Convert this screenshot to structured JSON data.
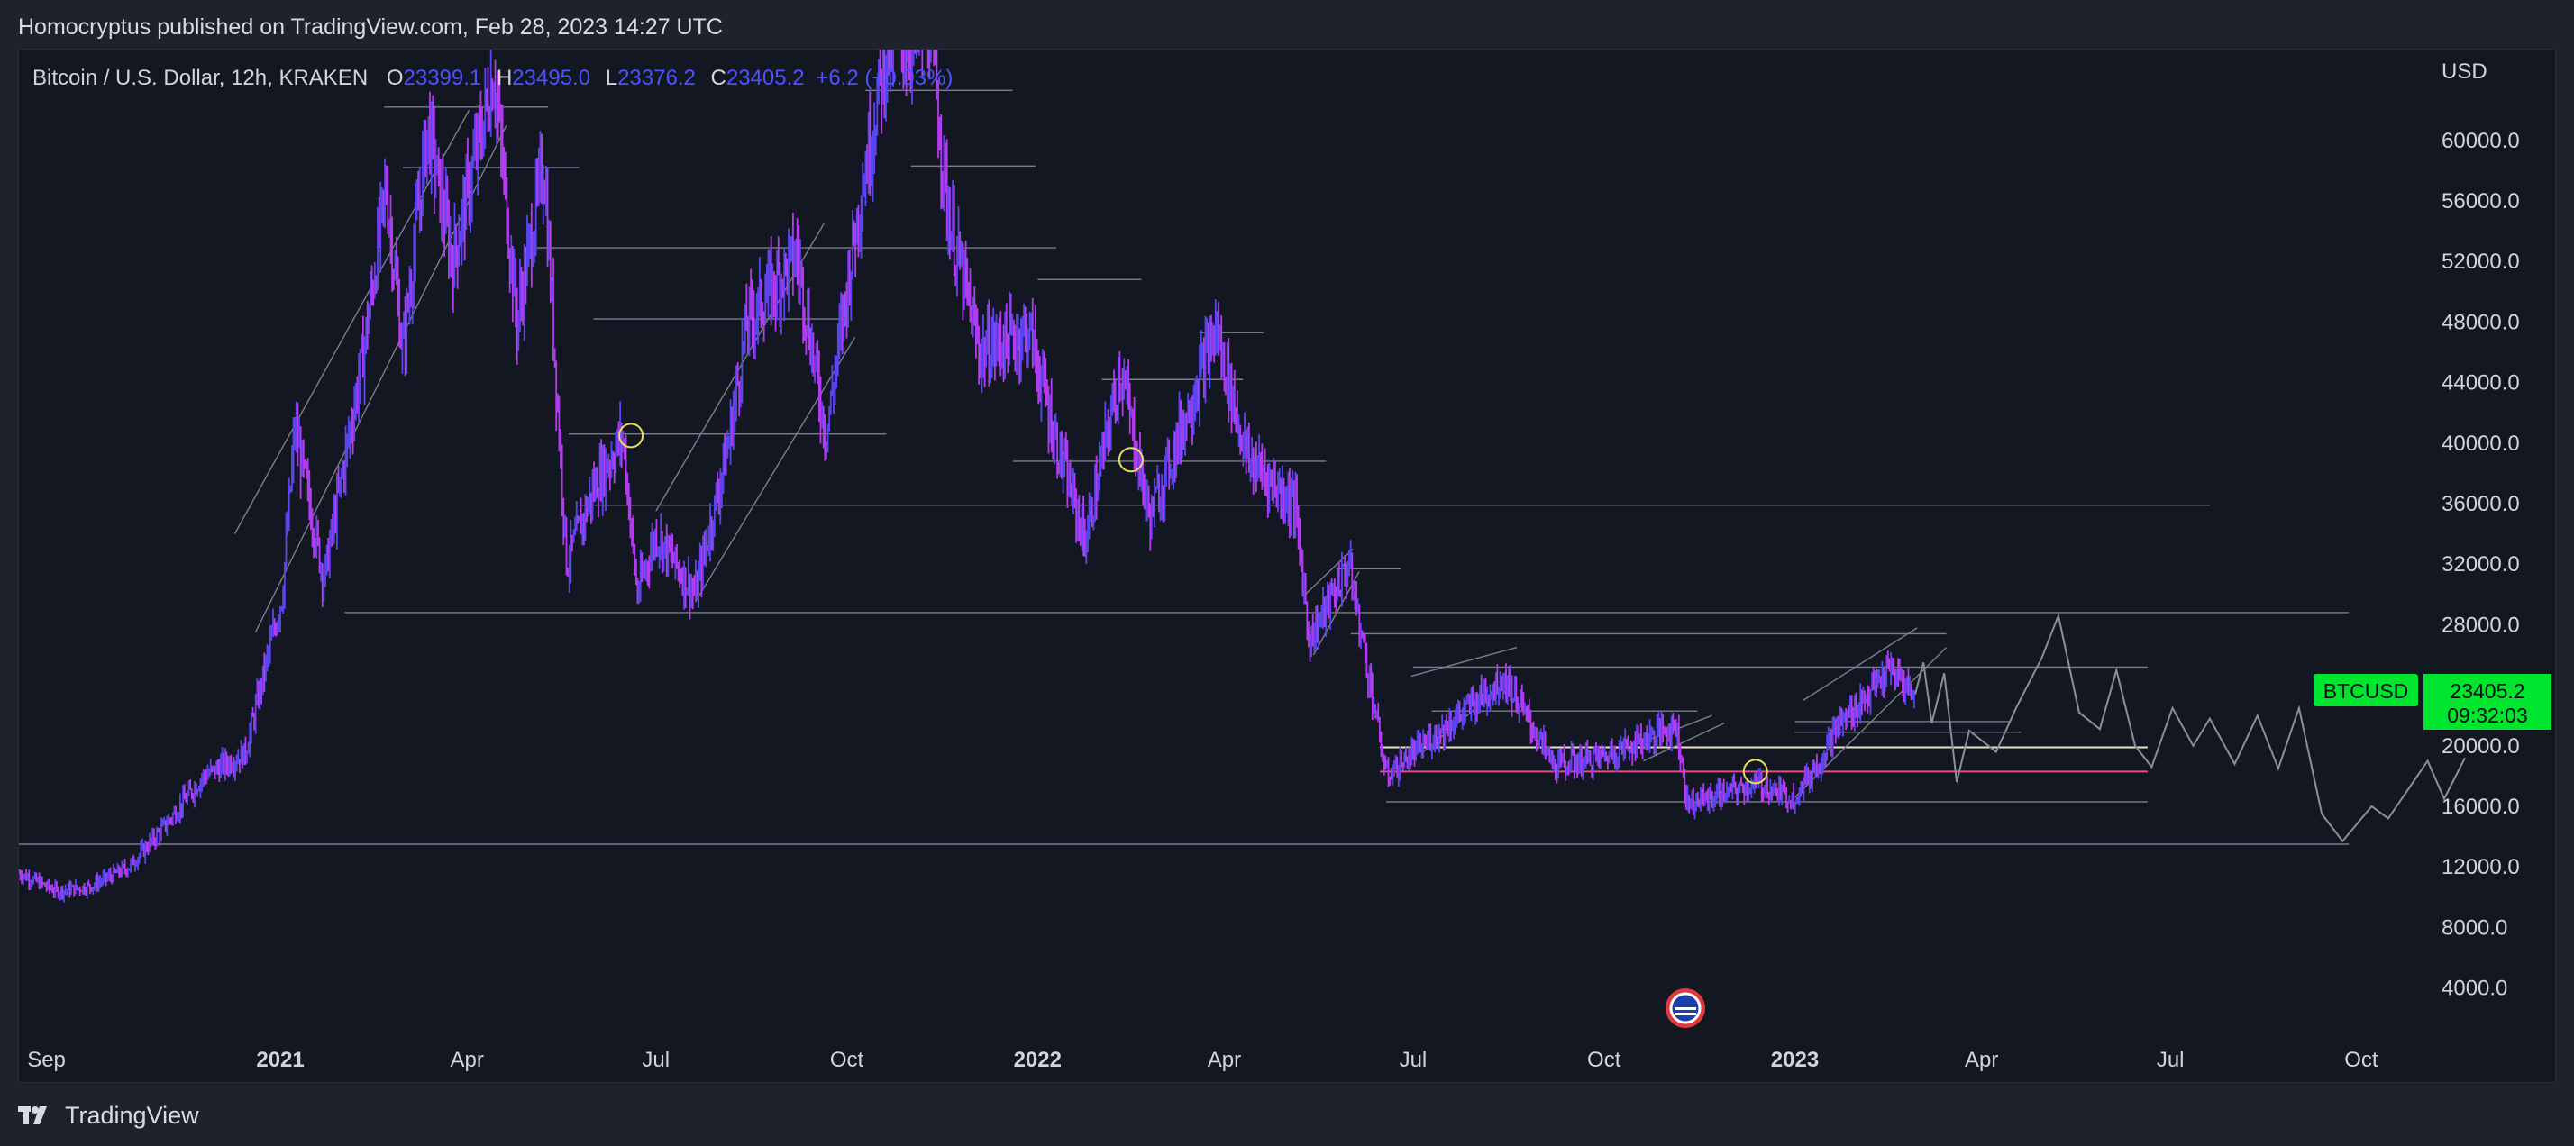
{
  "header": {
    "published": "Homocryptus published on TradingView.com, Feb 28, 2023 14:27 UTC"
  },
  "footer": {
    "brand": "TradingView",
    "logo_icon": "tradingview-logo-icon"
  },
  "colors": {
    "background": "#131722",
    "frame": "#1e222d",
    "candle": "#b43cf0",
    "candle_alt": "#5a46f0",
    "ohlc_values": "#4d52ff",
    "level_lines": "#7a7f8c",
    "support_white": "#e8e3c8",
    "support_pink": "#e84a8a",
    "price_badge": "#00e62e",
    "circle_marker": "#e8e05a"
  },
  "chart_data": {
    "type": "candlestick",
    "title": "Bitcoin / U.S. Dollar, 12h, KRAKEN",
    "symbol": "BTCUSD",
    "ohlc": {
      "o_label": "O",
      "o": "23399.1",
      "h_label": "H",
      "h": "23495.0",
      "l_label": "L",
      "l": "23376.2",
      "c_label": "C",
      "c": "23405.2",
      "change": "+6.2 (+0.03%)"
    },
    "y_axis": {
      "unit": "USD",
      "ticks": [
        "60000.0",
        "56000.0",
        "52000.0",
        "48000.0",
        "44000.0",
        "40000.0",
        "36000.0",
        "32000.0",
        "28000.0",
        "20000.0",
        "16000.0",
        "12000.0",
        "8000.0",
        "4000.0"
      ],
      "range": [
        1000,
        66000
      ]
    },
    "x_axis": {
      "range": [
        "2020-08-28",
        "2023-10-31"
      ],
      "ticks": [
        {
          "label": "Sep",
          "date": "2020-09-01",
          "bold": false
        },
        {
          "label": "2021",
          "date": "2021-01-01",
          "bold": true
        },
        {
          "label": "Apr",
          "date": "2021-04-01",
          "bold": false
        },
        {
          "label": "Jul",
          "date": "2021-07-01",
          "bold": false
        },
        {
          "label": "Oct",
          "date": "2021-10-01",
          "bold": false
        },
        {
          "label": "2022",
          "date": "2022-01-01",
          "bold": true
        },
        {
          "label": "Apr",
          "date": "2022-04-01",
          "bold": false
        },
        {
          "label": "Jul",
          "date": "2022-07-01",
          "bold": false
        },
        {
          "label": "Oct",
          "date": "2022-10-01",
          "bold": false
        },
        {
          "label": "2023",
          "date": "2023-01-01",
          "bold": true
        },
        {
          "label": "Apr",
          "date": "2023-04-01",
          "bold": false
        },
        {
          "label": "Jul",
          "date": "2023-07-01",
          "bold": false
        },
        {
          "label": "Oct",
          "date": "2023-10-01",
          "bold": false
        }
      ]
    },
    "last_price": {
      "value": 23405.2,
      "label": "23405.2",
      "countdown": "09:32:03"
    },
    "price_path": [
      [
        "2020-08-28",
        11600
      ],
      [
        "2020-09-15",
        10400
      ],
      [
        "2020-10-01",
        10700
      ],
      [
        "2020-10-20",
        12000
      ],
      [
        "2020-11-05",
        14500
      ],
      [
        "2020-11-25",
        18000
      ],
      [
        "2020-12-15",
        19500
      ],
      [
        "2021-01-02",
        30000
      ],
      [
        "2021-01-08",
        41000
      ],
      [
        "2021-01-22",
        31000
      ],
      [
        "2021-02-10",
        46000
      ],
      [
        "2021-02-21",
        57000
      ],
      [
        "2021-03-01",
        46000
      ],
      [
        "2021-03-13",
        61000
      ],
      [
        "2021-03-25",
        52000
      ],
      [
        "2021-04-14",
        64500
      ],
      [
        "2021-04-25",
        48000
      ],
      [
        "2021-05-08",
        58500
      ],
      [
        "2021-05-19",
        32000
      ],
      [
        "2021-06-01",
        37000
      ],
      [
        "2021-06-15",
        40500
      ],
      [
        "2021-06-22",
        30000
      ],
      [
        "2021-07-01",
        34000
      ],
      [
        "2021-07-20",
        30000
      ],
      [
        "2021-08-05",
        40000
      ],
      [
        "2021-08-14",
        48000
      ],
      [
        "2021-09-07",
        52500
      ],
      [
        "2021-09-21",
        40500
      ],
      [
        "2021-10-06",
        55000
      ],
      [
        "2021-10-20",
        66000
      ],
      [
        "2021-11-10",
        67500
      ],
      [
        "2021-11-19",
        55000
      ],
      [
        "2021-12-04",
        46000
      ],
      [
        "2021-12-28",
        47500
      ],
      [
        "2022-01-10",
        40000
      ],
      [
        "2022-01-24",
        33500
      ],
      [
        "2022-02-10",
        45000
      ],
      [
        "2022-02-24",
        35000
      ],
      [
        "2022-03-28",
        47500
      ],
      [
        "2022-04-12",
        39000
      ],
      [
        "2022-05-05",
        36000
      ],
      [
        "2022-05-12",
        27000
      ],
      [
        "2022-05-31",
        32000
      ],
      [
        "2022-06-13",
        22000
      ],
      [
        "2022-06-18",
        18000
      ],
      [
        "2022-07-10",
        20500
      ],
      [
        "2022-08-14",
        24500
      ],
      [
        "2022-09-07",
        18700
      ],
      [
        "2022-10-01",
        19300
      ],
      [
        "2022-11-05",
        21400
      ],
      [
        "2022-11-10",
        16200
      ],
      [
        "2022-12-15",
        17500
      ],
      [
        "2022-12-31",
        16500
      ],
      [
        "2023-01-13",
        19000
      ],
      [
        "2023-01-20",
        21000
      ],
      [
        "2023-02-16",
        25000
      ],
      [
        "2023-02-28",
        23405
      ]
    ],
    "levels": [
      {
        "price": 28800,
        "from": "2021-02-01",
        "to": "2023-09-25",
        "color": "level"
      },
      {
        "price": 35900,
        "from": "2021-05-25",
        "to": "2023-07-20",
        "color": "level"
      },
      {
        "price": 13500,
        "from": "2020-08-28",
        "to": "2023-09-25",
        "color": "level"
      },
      {
        "price": 19900,
        "from": "2022-06-15",
        "to": "2023-06-20",
        "color": "white"
      },
      {
        "price": 18300,
        "from": "2022-06-15",
        "to": "2023-06-20",
        "color": "pink"
      },
      {
        "price": 16300,
        "from": "2022-06-18",
        "to": "2023-06-20",
        "color": "level"
      },
      {
        "price": 25200,
        "from": "2022-07-01",
        "to": "2023-06-20",
        "color": "level"
      },
      {
        "price": 27400,
        "from": "2022-06-01",
        "to": "2023-03-15",
        "color": "level"
      },
      {
        "price": 62200,
        "from": "2021-02-20",
        "to": "2021-05-10",
        "color": "level"
      },
      {
        "price": 58200,
        "from": "2021-03-01",
        "to": "2021-05-25",
        "color": "level"
      },
      {
        "price": 52900,
        "from": "2021-05-01",
        "to": "2022-01-10",
        "color": "level"
      },
      {
        "price": 48200,
        "from": "2021-06-01",
        "to": "2021-10-01",
        "color": "level"
      },
      {
        "price": 40600,
        "from": "2021-05-20",
        "to": "2021-10-20",
        "color": "level"
      },
      {
        "price": 63300,
        "from": "2021-10-10",
        "to": "2021-12-20",
        "color": "level"
      },
      {
        "price": 58300,
        "from": "2021-11-01",
        "to": "2021-12-31",
        "color": "level"
      },
      {
        "price": 50800,
        "from": "2022-01-01",
        "to": "2022-02-20",
        "color": "level"
      },
      {
        "price": 47300,
        "from": "2022-03-20",
        "to": "2022-04-20",
        "color": "level"
      },
      {
        "price": 44200,
        "from": "2022-02-01",
        "to": "2022-04-10",
        "color": "level"
      },
      {
        "price": 38800,
        "from": "2021-12-20",
        "to": "2022-05-20",
        "color": "level"
      },
      {
        "price": 31700,
        "from": "2022-05-25",
        "to": "2022-06-25",
        "color": "level"
      },
      {
        "price": 22300,
        "from": "2022-07-10",
        "to": "2022-11-15",
        "color": "level"
      },
      {
        "price": 21600,
        "from": "2023-01-01",
        "to": "2023-04-15",
        "color": "level"
      },
      {
        "price": 20900,
        "from": "2023-01-01",
        "to": "2023-04-20",
        "color": "level"
      }
    ],
    "trendlines": [
      [
        "2020-12-10",
        34000,
        "2021-04-02",
        62000
      ],
      [
        "2020-12-20",
        27500,
        "2021-04-20",
        61000
      ],
      [
        "2021-07-01",
        35500,
        "2021-09-20",
        54500
      ],
      [
        "2021-07-20",
        29500,
        "2021-10-05",
        47000
      ],
      [
        "2022-05-10",
        30000,
        "2022-06-02",
        33000
      ],
      [
        "2022-05-14",
        26000,
        "2022-06-05",
        31500
      ],
      [
        "2022-06-30",
        24600,
        "2022-08-20",
        26500
      ],
      [
        "2022-07-05",
        19500,
        "2022-08-18",
        24500
      ],
      [
        "2022-10-15",
        20000,
        "2022-11-22",
        22000
      ],
      [
        "2022-10-20",
        19000,
        "2022-11-28",
        21500
      ],
      [
        "2023-01-05",
        23000,
        "2023-03-01",
        27800
      ],
      [
        "2023-01-01",
        16600,
        "2023-03-15",
        26500
      ]
    ],
    "projection": [
      [
        "2023-02-28",
        23405
      ],
      [
        "2023-03-04",
        25500
      ],
      [
        "2023-03-08",
        21500
      ],
      [
        "2023-03-14",
        24800
      ],
      [
        "2023-03-20",
        17600
      ],
      [
        "2023-03-26",
        21000
      ],
      [
        "2023-04-08",
        19600
      ],
      [
        "2023-04-18",
        22600
      ],
      [
        "2023-04-30",
        25800
      ],
      [
        "2023-05-08",
        28600
      ],
      [
        "2023-05-18",
        22200
      ],
      [
        "2023-05-28",
        21100
      ],
      [
        "2023-06-05",
        25000
      ],
      [
        "2023-06-14",
        20000
      ],
      [
        "2023-06-22",
        18600
      ],
      [
        "2023-07-02",
        22500
      ],
      [
        "2023-07-12",
        20000
      ],
      [
        "2023-07-20",
        21800
      ],
      [
        "2023-08-01",
        18800
      ],
      [
        "2023-08-12",
        22000
      ],
      [
        "2023-08-22",
        18500
      ],
      [
        "2023-09-01",
        22500
      ],
      [
        "2023-09-12",
        15500
      ],
      [
        "2023-09-22",
        13700
      ],
      [
        "2023-10-06",
        16000
      ],
      [
        "2023-10-14",
        15200
      ],
      [
        "2023-10-22",
        16800
      ]
    ],
    "projection_tail": [
      [
        "2023-10-22",
        16800
      ],
      [
        "2023-11-02",
        19000
      ],
      [
        "2023-11-10",
        16500
      ],
      [
        "2023-11-20",
        19200
      ]
    ],
    "circles": [
      {
        "date": "2021-06-19",
        "price": 40500
      },
      {
        "date": "2022-02-15",
        "price": 38900
      },
      {
        "date": "2022-12-13",
        "price": 18300
      }
    ],
    "country_flag_icon": "us-flag-event-icon"
  }
}
